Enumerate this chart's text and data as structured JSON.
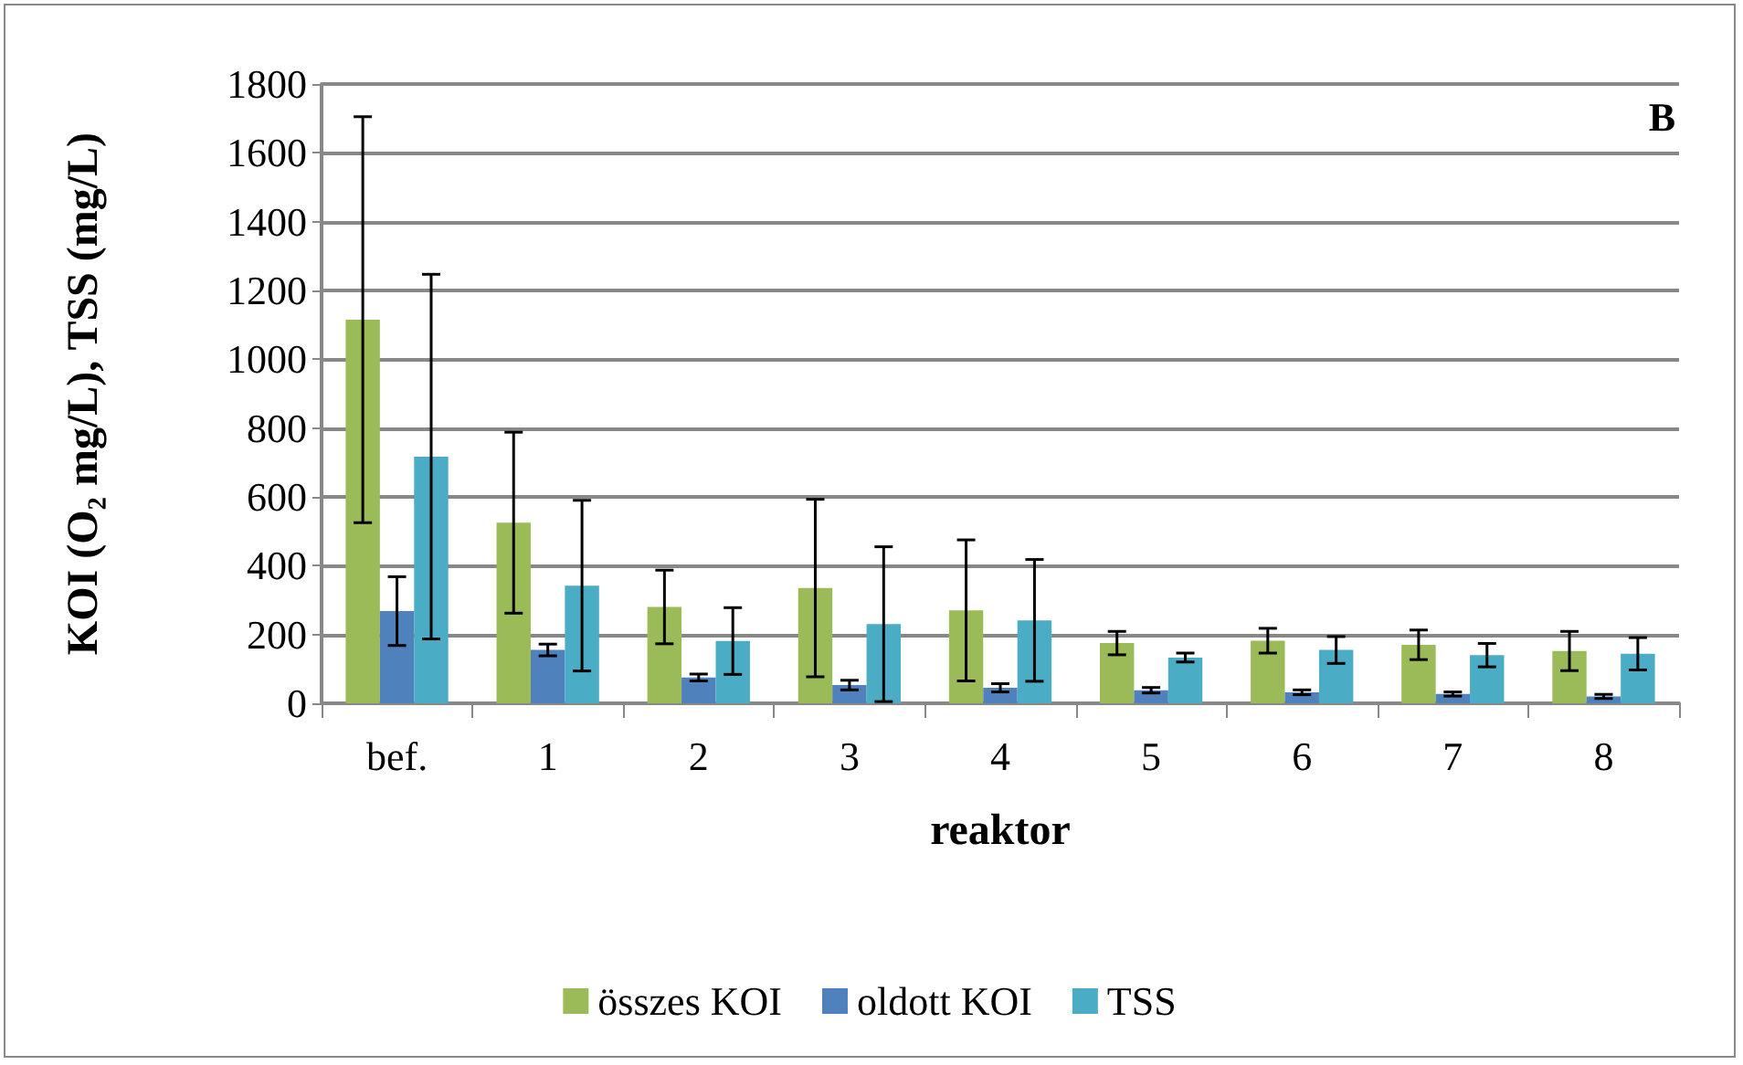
{
  "chart_data": {
    "type": "bar",
    "xlabel": "reaktor",
    "ylabel": "KOI (O₂ mg/L), TSS (mg/L)",
    "categories": [
      "bef.",
      "1",
      "2",
      "3",
      "4",
      "5",
      "6",
      "7",
      "8"
    ],
    "series": [
      {
        "name": "összes KOI",
        "color": "#9bbb59",
        "values": [
          1115,
          525,
          280,
          335,
          270,
          175,
          182,
          170,
          152
        ],
        "errors": [
          590,
          263,
          107,
          258,
          205,
          34,
          36,
          43,
          57
        ]
      },
      {
        "name": "oldott KOI",
        "color": "#4f81bd",
        "values": [
          268,
          155,
          75,
          53,
          45,
          38,
          32,
          27,
          20
        ],
        "errors": [
          100,
          17,
          10,
          14,
          12,
          8,
          7,
          6,
          6
        ]
      },
      {
        "name": "TSS",
        "color": "#4bacc6",
        "values": [
          717,
          342,
          181,
          230,
          241,
          133,
          155,
          140,
          144
        ],
        "errors": [
          530,
          248,
          97,
          225,
          177,
          13,
          39,
          34,
          47
        ]
      }
    ],
    "ylim": [
      0,
      1800
    ],
    "yticks": [
      0,
      200,
      400,
      600,
      800,
      1000,
      1200,
      1400,
      1600,
      1800
    ],
    "grid": "y",
    "legend": "bottom",
    "annotations": [
      "B"
    ]
  }
}
